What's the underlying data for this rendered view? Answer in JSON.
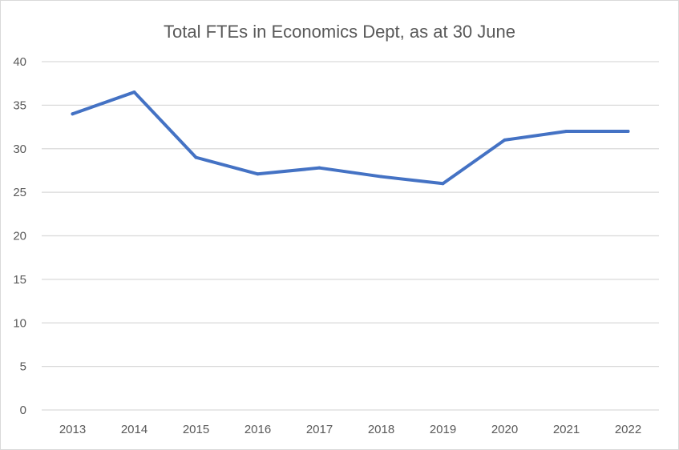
{
  "chart_data": {
    "type": "line",
    "title": "Total FTEs in Economics Dept, as at 30 June",
    "xlabel": "",
    "ylabel": "",
    "categories": [
      "2013",
      "2014",
      "2015",
      "2016",
      "2017",
      "2018",
      "2019",
      "2020",
      "2021",
      "2022"
    ],
    "series": [
      {
        "name": "Total FTEs",
        "values": [
          34.0,
          36.5,
          29.0,
          27.1,
          27.8,
          26.8,
          26.0,
          31.0,
          32.0,
          32.0
        ],
        "color": "#4472c4"
      }
    ],
    "ylim": [
      0,
      40
    ],
    "yticks": [
      0,
      5,
      10,
      15,
      20,
      25,
      30,
      35,
      40
    ],
    "grid": true,
    "legend": "none"
  }
}
